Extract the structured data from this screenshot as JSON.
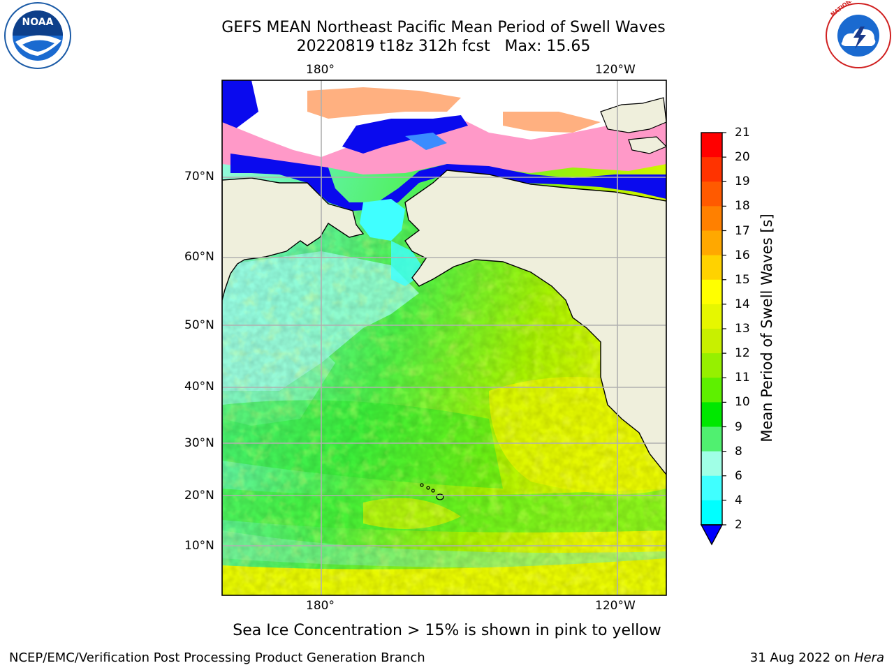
{
  "title": {
    "line1": "GEFS MEAN Northeast Pacific Mean Period of Swell Waves",
    "line2": "20220819 t18z 312h fcst   Max: 15.65"
  },
  "axes": {
    "lon_labels": [
      "180°",
      "120°W"
    ],
    "lat_labels": [
      "70°N",
      "60°N",
      "50°N",
      "40°N",
      "30°N",
      "20°N",
      "10°N"
    ]
  },
  "colorbar": {
    "label": "Mean Period of Swell Waves [s]",
    "ticks": [
      "21",
      "20",
      "19",
      "18",
      "17",
      "16",
      "15",
      "14",
      "13",
      "12",
      "11",
      "10",
      "9",
      "8",
      "6",
      "4",
      "2"
    ],
    "colors": [
      "#ff0000",
      "#ff3300",
      "#ff5a00",
      "#ff8000",
      "#ffa800",
      "#ffd200",
      "#ffff00",
      "#e6f700",
      "#c8f000",
      "#96f000",
      "#5ef000",
      "#00e800",
      "#50f070",
      "#a0ffe6",
      "#40ffff",
      "#00ffff",
      "#0096ff",
      "#0a0aff"
    ],
    "under_color": "#0000ff"
  },
  "map_colors": {
    "land": "#efefdc",
    "ocean_green": "#4cf048",
    "ocean_lightblue": "#a2fdee",
    "ocean_yellow": "#e8f800",
    "ice_blue": "#0a0aee",
    "ice_pink": "#ff99c8",
    "ice_orange": "#ffb080"
  },
  "caption": "Sea Ice Concentration > 15% is shown in pink to yellow",
  "footer": {
    "left": "NCEP/EMC/Verification Post Processing Product Generation Branch",
    "right_date": "31 Aug 2022 on ",
    "right_host": "Hera"
  },
  "logos": {
    "noaa_text": "NOAA",
    "nws_text": "NATIONAL WEATHER SERVICE"
  }
}
